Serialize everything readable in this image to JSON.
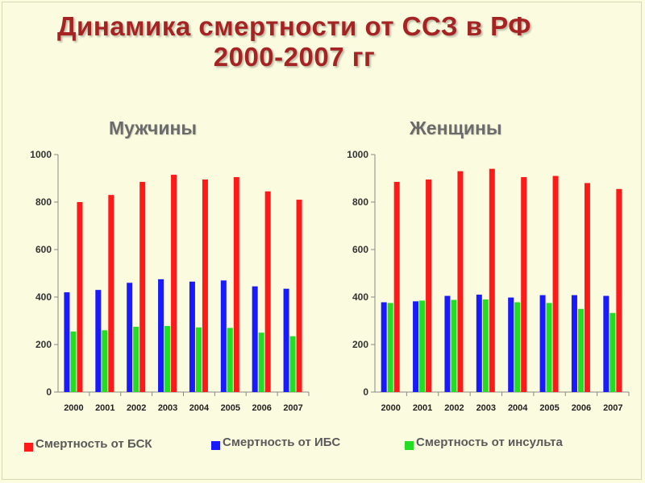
{
  "title": {
    "line1": "Динамика смертности от ССЗ в РФ",
    "line2": "2000-2007 гг"
  },
  "legend": [
    {
      "label": "Смертность от БСК",
      "color": "#ff1a1a"
    },
    {
      "label": "Смертность от ИБС",
      "color": "#1a1aff"
    },
    {
      "label": "Смертность от инсульта",
      "color": "#22dd22"
    }
  ],
  "chart_data": [
    {
      "type": "bar",
      "title": "Мужчины",
      "categories": [
        "2000",
        "2001",
        "2002",
        "2003",
        "2004",
        "2005",
        "2006",
        "2007"
      ],
      "ylim": [
        0,
        1000
      ],
      "yticks": [
        0,
        200,
        400,
        600,
        800,
        1000
      ],
      "series": [
        {
          "name": "Смертность от БСК",
          "color": "#ff1a1a",
          "values": [
            800,
            830,
            885,
            915,
            895,
            905,
            845,
            810
          ]
        },
        {
          "name": "Смертность от ИБС",
          "color": "#1a1aff",
          "values": [
            420,
            430,
            460,
            475,
            465,
            470,
            445,
            435
          ]
        },
        {
          "name": "Смертность от инсульта",
          "color": "#22dd22",
          "values": [
            255,
            260,
            275,
            278,
            272,
            270,
            250,
            235
          ]
        }
      ]
    },
    {
      "type": "bar",
      "title": "Женщины",
      "categories": [
        "2000",
        "2001",
        "2002",
        "2003",
        "2004",
        "2005",
        "2006",
        "2007"
      ],
      "ylim": [
        0,
        1000
      ],
      "yticks": [
        0,
        200,
        400,
        600,
        800,
        1000
      ],
      "series": [
        {
          "name": "Смертность от БСК",
          "color": "#ff1a1a",
          "values": [
            885,
            895,
            930,
            940,
            905,
            910,
            880,
            855
          ]
        },
        {
          "name": "Смертность от ИБС",
          "color": "#1a1aff",
          "values": [
            378,
            382,
            405,
            410,
            398,
            408,
            408,
            405
          ]
        },
        {
          "name": "Смертность от инсульта",
          "color": "#22dd22",
          "values": [
            375,
            385,
            388,
            390,
            378,
            375,
            350,
            333
          ]
        }
      ]
    }
  ]
}
